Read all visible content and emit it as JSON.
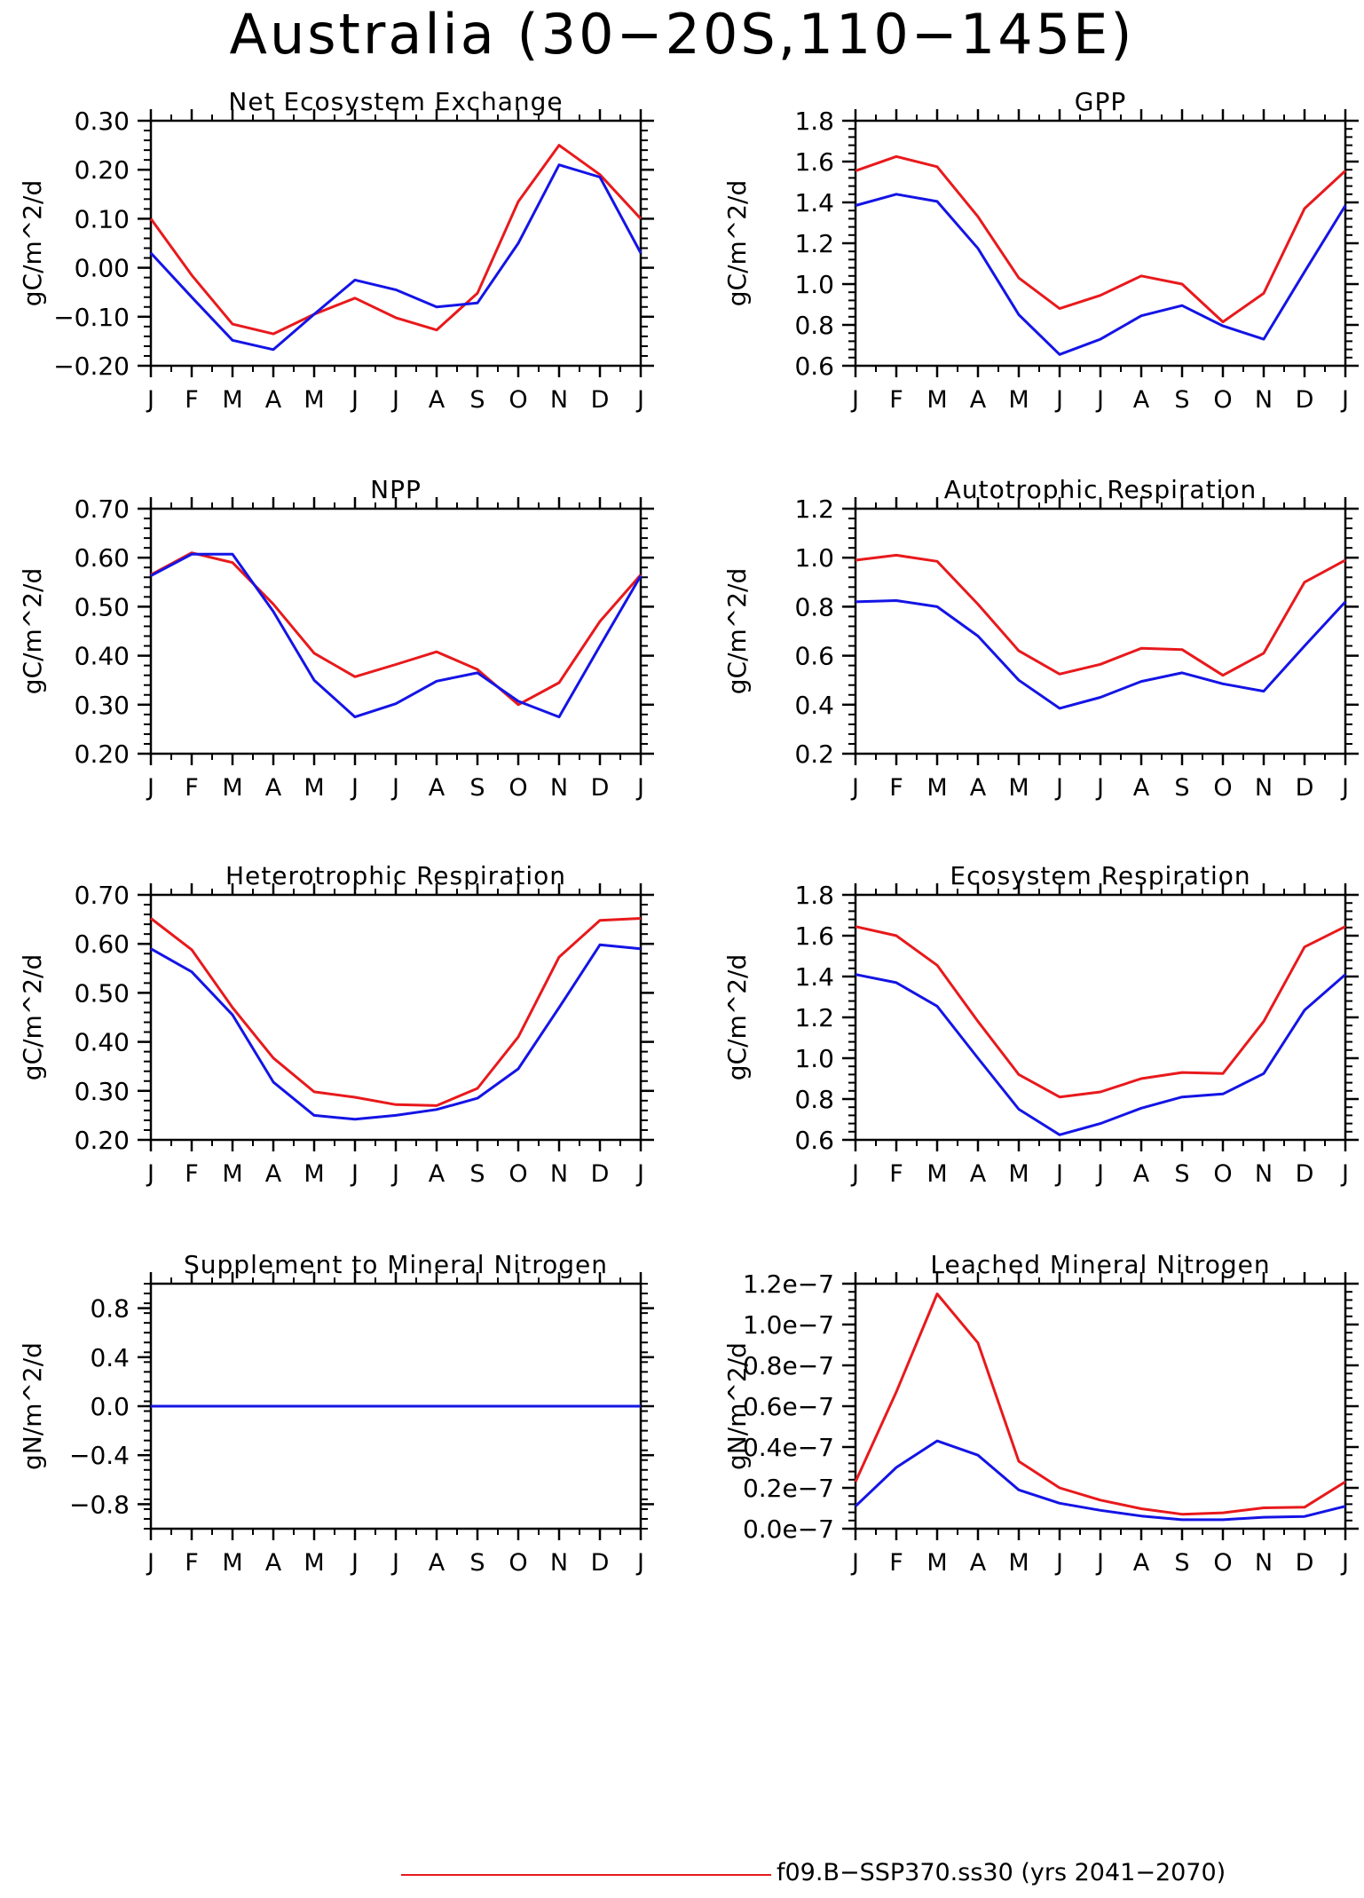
{
  "figure": {
    "title": "Australia (30−20S,110−145E)",
    "legend": [
      {
        "label": "f09.B−SSP370.ss30 (yrs 2041−2070)",
        "color": "#e8191c"
      }
    ]
  },
  "colors": {
    "series_red": "#e8191c",
    "series_blue": "#1414e6"
  },
  "chart_data": [
    {
      "type": "line",
      "title": "Net Ecosystem Exchange",
      "ylabel": "gC/m^2/d",
      "categories": [
        "J",
        "F",
        "M",
        "A",
        "M",
        "J",
        "J",
        "A",
        "S",
        "O",
        "N",
        "D",
        "J"
      ],
      "ylim": [
        -0.2,
        0.3
      ],
      "yticks": [
        -0.2,
        -0.1,
        0.0,
        0.1,
        0.2,
        0.3
      ],
      "ytick_labels": [
        "−0.20",
        "−0.10",
        "0.00",
        "0.10",
        "0.20",
        "0.30"
      ],
      "series": [
        {
          "color": "#e8191c",
          "values": [
            0.1,
            -0.015,
            -0.115,
            -0.135,
            -0.095,
            -0.062,
            -0.102,
            -0.127,
            -0.052,
            0.135,
            0.25,
            0.19,
            0.1
          ]
        },
        {
          "color": "#1414e6",
          "values": [
            0.03,
            -0.06,
            -0.148,
            -0.167,
            -0.095,
            -0.025,
            -0.045,
            -0.08,
            -0.072,
            0.05,
            0.21,
            0.185,
            0.03
          ]
        }
      ]
    },
    {
      "type": "line",
      "title": "GPP",
      "ylabel": "gC/m^2/d",
      "categories": [
        "J",
        "F",
        "M",
        "A",
        "M",
        "J",
        "J",
        "A",
        "S",
        "O",
        "N",
        "D",
        "J"
      ],
      "ylim": [
        0.6,
        1.8
      ],
      "yticks": [
        0.6,
        0.8,
        1.0,
        1.2,
        1.4,
        1.6,
        1.8
      ],
      "ytick_labels": [
        "0.6",
        "0.8",
        "1.0",
        "1.2",
        "1.4",
        "1.6",
        "1.8"
      ],
      "series": [
        {
          "color": "#e8191c",
          "values": [
            1.555,
            1.625,
            1.575,
            1.33,
            1.03,
            0.88,
            0.945,
            1.04,
            1.0,
            0.815,
            0.955,
            1.37,
            1.555
          ]
        },
        {
          "color": "#1414e6",
          "values": [
            1.385,
            1.44,
            1.405,
            1.175,
            0.85,
            0.655,
            0.73,
            0.845,
            0.895,
            0.795,
            0.73,
            1.06,
            1.385
          ]
        }
      ]
    },
    {
      "type": "line",
      "title": "NPP",
      "ylabel": "gC/m^2/d",
      "categories": [
        "J",
        "F",
        "M",
        "A",
        "M",
        "J",
        "J",
        "A",
        "S",
        "O",
        "N",
        "D",
        "J"
      ],
      "ylim": [
        0.2,
        0.7
      ],
      "yticks": [
        0.2,
        0.3,
        0.4,
        0.5,
        0.6,
        0.7
      ],
      "ytick_labels": [
        "0.20",
        "0.30",
        "0.40",
        "0.50",
        "0.60",
        "0.70"
      ],
      "series": [
        {
          "color": "#e8191c",
          "values": [
            0.565,
            0.61,
            0.59,
            0.505,
            0.405,
            0.357,
            0.382,
            0.408,
            0.372,
            0.3,
            0.345,
            0.47,
            0.565
          ]
        },
        {
          "color": "#1414e6",
          "values": [
            0.563,
            0.607,
            0.607,
            0.49,
            0.35,
            0.275,
            0.302,
            0.348,
            0.365,
            0.307,
            0.275,
            0.42,
            0.563
          ]
        }
      ]
    },
    {
      "type": "line",
      "title": "Autotrophic Respiration",
      "ylabel": "gC/m^2/d",
      "categories": [
        "J",
        "F",
        "M",
        "A",
        "M",
        "J",
        "J",
        "A",
        "S",
        "O",
        "N",
        "D",
        "J"
      ],
      "ylim": [
        0.2,
        1.2
      ],
      "yticks": [
        0.2,
        0.4,
        0.6,
        0.8,
        1.0,
        1.2
      ],
      "ytick_labels": [
        "0.2",
        "0.4",
        "0.6",
        "0.8",
        "1.0",
        "1.2"
      ],
      "series": [
        {
          "color": "#e8191c",
          "values": [
            0.99,
            1.01,
            0.985,
            0.81,
            0.62,
            0.525,
            0.565,
            0.63,
            0.625,
            0.52,
            0.61,
            0.9,
            0.99
          ]
        },
        {
          "color": "#1414e6",
          "values": [
            0.82,
            0.825,
            0.8,
            0.68,
            0.5,
            0.385,
            0.43,
            0.495,
            0.53,
            0.485,
            0.455,
            0.64,
            0.82
          ]
        }
      ]
    },
    {
      "type": "line",
      "title": "Heterotrophic Respiration",
      "ylabel": "gC/m^2/d",
      "categories": [
        "J",
        "F",
        "M",
        "A",
        "M",
        "J",
        "J",
        "A",
        "S",
        "O",
        "N",
        "D",
        "J"
      ],
      "ylim": [
        0.2,
        0.7
      ],
      "yticks": [
        0.2,
        0.3,
        0.4,
        0.5,
        0.6,
        0.7
      ],
      "ytick_labels": [
        "0.20",
        "0.30",
        "0.40",
        "0.50",
        "0.60",
        "0.70"
      ],
      "series": [
        {
          "color": "#e8191c",
          "values": [
            0.652,
            0.588,
            0.47,
            0.367,
            0.298,
            0.287,
            0.272,
            0.27,
            0.305,
            0.41,
            0.573,
            0.648,
            0.652
          ]
        },
        {
          "color": "#1414e6",
          "values": [
            0.59,
            0.543,
            0.455,
            0.318,
            0.25,
            0.242,
            0.25,
            0.262,
            0.285,
            0.345,
            0.47,
            0.598,
            0.59
          ]
        }
      ]
    },
    {
      "type": "line",
      "title": "Ecosystem Respiration",
      "ylabel": "gC/m^2/d",
      "categories": [
        "J",
        "F",
        "M",
        "A",
        "M",
        "J",
        "J",
        "A",
        "S",
        "O",
        "N",
        "D",
        "J"
      ],
      "ylim": [
        0.6,
        1.8
      ],
      "yticks": [
        0.6,
        0.8,
        1.0,
        1.2,
        1.4,
        1.6,
        1.8
      ],
      "ytick_labels": [
        "0.6",
        "0.8",
        "1.0",
        "1.2",
        "1.4",
        "1.6",
        "1.8"
      ],
      "series": [
        {
          "color": "#e8191c",
          "values": [
            1.645,
            1.6,
            1.455,
            1.18,
            0.92,
            0.81,
            0.835,
            0.9,
            0.93,
            0.925,
            1.18,
            1.545,
            1.645
          ]
        },
        {
          "color": "#1414e6",
          "values": [
            1.41,
            1.37,
            1.255,
            1.0,
            0.75,
            0.625,
            0.68,
            0.755,
            0.81,
            0.825,
            0.925,
            1.235,
            1.41
          ]
        }
      ]
    },
    {
      "type": "line",
      "title": "Supplement to Mineral Nitrogen",
      "ylabel": "gN/m^2/d",
      "categories": [
        "J",
        "F",
        "M",
        "A",
        "M",
        "J",
        "J",
        "A",
        "S",
        "O",
        "N",
        "D",
        "J"
      ],
      "ylim": [
        -1.0,
        1.0
      ],
      "yticks": [
        -0.8,
        -0.4,
        0.0,
        0.4,
        0.8
      ],
      "ytick_labels": [
        "−0.8",
        "−0.4",
        "0.0",
        "0.4",
        "0.8"
      ],
      "series": [
        {
          "color": "#e8191c",
          "values": [
            0,
            0,
            0,
            0,
            0,
            0,
            0,
            0,
            0,
            0,
            0,
            0,
            0
          ]
        },
        {
          "color": "#1414e6",
          "values": [
            0,
            0,
            0,
            0,
            0,
            0,
            0,
            0,
            0,
            0,
            0,
            0,
            0
          ]
        }
      ]
    },
    {
      "type": "line",
      "title": "Leached Mineral Nitrogen",
      "ylabel": "gN/m^2/d",
      "categories": [
        "J",
        "F",
        "M",
        "A",
        "M",
        "J",
        "J",
        "A",
        "S",
        "O",
        "N",
        "D",
        "J"
      ],
      "ylim": [
        0.0,
        1.2e-07
      ],
      "yticks": [
        0.0,
        2e-08,
        4e-08,
        6e-08,
        8e-08,
        1e-07,
        1.2e-07
      ],
      "ytick_labels": [
        "0.0e−7",
        "0.2e−7",
        "0.4e−7",
        "0.6e−7",
        "0.8e−7",
        "1.0e−7",
        "1.2e−7"
      ],
      "series": [
        {
          "color": "#e8191c",
          "values": [
            2.3e-08,
            6.7e-08,
            1.15e-07,
            9.1e-08,
            3.3e-08,
            2e-08,
            1.4e-08,
            9.8e-09,
            7.1e-09,
            7.8e-09,
            1.02e-08,
            1.05e-08,
            2.3e-08
          ]
        },
        {
          "color": "#1414e6",
          "values": [
            1.1e-08,
            3e-08,
            4.3e-08,
            3.6e-08,
            1.9e-08,
            1.25e-08,
            9e-09,
            6.2e-09,
            4.4e-09,
            4.4e-09,
            5.6e-09,
            6e-09,
            1.1e-08
          ]
        }
      ]
    }
  ]
}
